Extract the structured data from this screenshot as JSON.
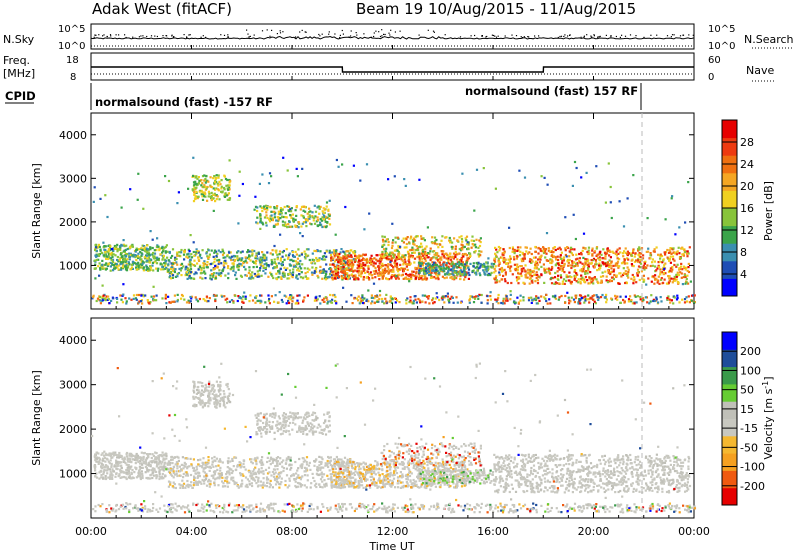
{
  "header": {
    "title_left": "Adak West (fitACF)",
    "title_right": "Beam 19  10/Aug/2015 - 11/Aug/2015"
  },
  "colors": {
    "frame": "#000000",
    "scan_dash": "#bbbbbb",
    "power_scale": [
      "#0000ff",
      "#1e4db5",
      "#3a8fb0",
      "#3aa44a",
      "#88c43a",
      "#f0d020",
      "#f5a623",
      "#f07010",
      "#ee3a10",
      "#e60000"
    ],
    "velocity_scale": [
      "#e60000",
      "#f05a10",
      "#f5a020",
      "#f5b830",
      "#c8c8c0",
      "#c0c0b8",
      "#66cc33",
      "#3a9a4a",
      "#1e4d9a",
      "#0000ff"
    ]
  },
  "chart_data": [
    {
      "type": "line",
      "name": "top-strip-noise",
      "left_label": "N.Sky",
      "right_label": "N.Search",
      "left_ticks": [
        "10^5",
        "10^0"
      ],
      "right_ticks": [
        "10^5",
        "10^0"
      ],
      "series": [
        {
          "name": "N.Sky",
          "style": "solid"
        },
        {
          "name": "N.Search",
          "style": "dotted"
        }
      ]
    },
    {
      "type": "line",
      "name": "top-strip-frequency",
      "left_label": "Freq. [MHz]",
      "right_label": "Nave",
      "left_ticks": [
        "18",
        "8"
      ],
      "right_ticks": [
        "60",
        "0"
      ],
      "x": [
        0,
        10,
        10.01,
        18,
        18.01,
        24
      ],
      "freq_mhz": [
        13.0,
        13.0,
        10.5,
        10.5,
        13.0,
        13.0
      ]
    },
    {
      "type": "table",
      "name": "cpid",
      "label": "CPID",
      "segments": [
        {
          "text": "normalsound (fast) -157 RF",
          "start_hour": 0
        },
        {
          "text": "normalsound (fast) 157 RF",
          "start_hour": 22
        }
      ]
    },
    {
      "type": "heatmap",
      "name": "power-panel",
      "ylabel": "Slant Range [km]",
      "yticks": [
        "1000",
        "2000",
        "3000",
        "4000"
      ],
      "ylim": [
        0,
        4500
      ],
      "xlim": [
        0,
        24
      ],
      "colorbar_label": "Power [dB]",
      "colorbar_ticks": [
        "4",
        "8",
        "12",
        "16",
        "20",
        "24",
        "28"
      ],
      "vmin": 0,
      "vmax": 32
    },
    {
      "type": "heatmap",
      "name": "velocity-panel",
      "ylabel": "Slant Range [km]",
      "yticks": [
        "1000",
        "2000",
        "3000",
        "4000"
      ],
      "ylim": [
        0,
        4500
      ],
      "xlim": [
        0,
        24
      ],
      "xlabel": "Time UT",
      "xticks": [
        "00:00",
        "04:00",
        "08:00",
        "12:00",
        "16:00",
        "20:00",
        "00:00"
      ],
      "colorbar_label": "Velocity [m s^-1]",
      "colorbar_ticks": [
        "200",
        "100",
        "50",
        "15",
        "-15",
        "-50",
        "-100",
        "-200"
      ]
    }
  ]
}
